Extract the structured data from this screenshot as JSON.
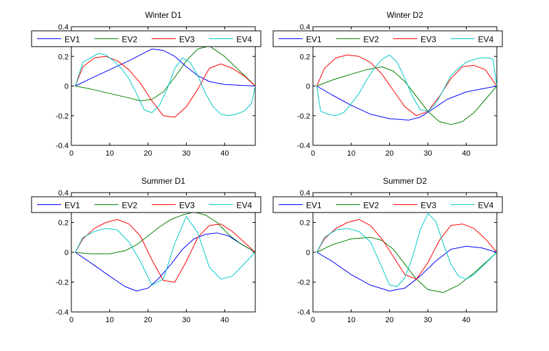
{
  "chart_data": [
    {
      "type": "line",
      "title": "Winter D1",
      "xlabel": "",
      "ylabel": "",
      "xlim": [
        0,
        48
      ],
      "ylim": [
        -0.4,
        0.4
      ],
      "xticks": [
        0,
        10,
        20,
        30,
        40
      ],
      "yticks": [
        -0.4,
        -0.2,
        0,
        0.2,
        0.4
      ],
      "yticklabels": [
        "-0.4",
        "-0.2",
        "0",
        "0.2",
        "0.4"
      ],
      "grid": false,
      "legend": "top, horizontal",
      "series": [
        {
          "name": "EV1",
          "color": "#0000ff",
          "x": [
            1,
            5,
            10,
            15,
            18,
            21,
            24,
            27,
            30,
            33,
            36,
            40,
            44,
            48
          ],
          "y": [
            0,
            0.05,
            0.11,
            0.17,
            0.21,
            0.25,
            0.24,
            0.2,
            0.13,
            0.07,
            0.03,
            0.01,
            0.005,
            0
          ]
        },
        {
          "name": "EV2",
          "color": "#008000",
          "x": [
            1,
            5,
            10,
            15,
            18,
            21,
            24,
            27,
            30,
            33,
            36,
            40,
            44,
            48
          ],
          "y": [
            0,
            -0.02,
            -0.05,
            -0.08,
            -0.1,
            -0.09,
            -0.04,
            0.06,
            0.17,
            0.25,
            0.27,
            0.2,
            0.1,
            0
          ]
        },
        {
          "name": "EV3",
          "color": "#ff0000",
          "x": [
            1,
            3,
            6,
            9,
            12,
            15,
            18,
            21,
            24,
            27,
            30,
            33,
            36,
            39,
            42,
            45,
            48
          ],
          "y": [
            0,
            0.13,
            0.19,
            0.2,
            0.17,
            0.11,
            0.02,
            -0.1,
            -0.2,
            -0.21,
            -0.14,
            -0.02,
            0.12,
            0.15,
            0.12,
            0.07,
            0
          ]
        },
        {
          "name": "EV4",
          "color": "#00c8c8",
          "x": [
            1,
            3,
            5,
            7,
            9,
            11,
            13,
            15,
            17,
            19,
            21,
            23,
            25,
            27,
            29,
            31,
            33,
            35,
            37,
            39,
            41,
            43,
            45,
            47,
            48
          ],
          "y": [
            0,
            0.16,
            0.19,
            0.22,
            0.21,
            0.17,
            0.12,
            0.05,
            -0.05,
            -0.16,
            -0.18,
            -0.13,
            -0.02,
            0.12,
            0.19,
            0.16,
            0.07,
            -0.05,
            -0.14,
            -0.19,
            -0.2,
            -0.19,
            -0.17,
            -0.12,
            0
          ]
        }
      ]
    },
    {
      "type": "line",
      "title": "Winter D2",
      "xlabel": "",
      "ylabel": "",
      "xlim": [
        0,
        48
      ],
      "ylim": [
        -0.4,
        0.4
      ],
      "xticks": [
        0,
        10,
        20,
        30,
        40
      ],
      "yticks": [
        -0.4,
        -0.2,
        0,
        0.2,
        0.4
      ],
      "yticklabels": [
        "-0.4",
        "-0.2",
        "0",
        "0.2",
        "0.4"
      ],
      "grid": false,
      "legend": "top, horizontal",
      "series": [
        {
          "name": "EV1",
          "color": "#0000ff",
          "x": [
            1,
            5,
            10,
            15,
            20,
            25,
            28,
            31,
            35,
            40,
            44,
            48
          ],
          "y": [
            0,
            -0.06,
            -0.13,
            -0.19,
            -0.22,
            -0.23,
            -0.21,
            -0.16,
            -0.09,
            -0.04,
            -0.02,
            0
          ]
        },
        {
          "name": "EV2",
          "color": "#008000",
          "x": [
            1,
            5,
            10,
            14,
            18,
            21,
            24,
            27,
            30,
            33,
            36,
            39,
            42,
            45,
            48
          ],
          "y": [
            0,
            0.04,
            0.08,
            0.11,
            0.13,
            0.1,
            0.03,
            -0.07,
            -0.17,
            -0.24,
            -0.26,
            -0.24,
            -0.18,
            -0.09,
            0
          ]
        },
        {
          "name": "EV3",
          "color": "#ff0000",
          "x": [
            1,
            3,
            6,
            9,
            12,
            15,
            18,
            21,
            24,
            27,
            30,
            33,
            36,
            39,
            42,
            45,
            48
          ],
          "y": [
            0,
            0.12,
            0.19,
            0.21,
            0.2,
            0.16,
            0.08,
            -0.03,
            -0.14,
            -0.2,
            -0.17,
            -0.07,
            0.05,
            0.13,
            0.14,
            0.11,
            0
          ]
        },
        {
          "name": "EV4",
          "color": "#00c8c8",
          "x": [
            1,
            2,
            4,
            6,
            8,
            10,
            12,
            14,
            16,
            18,
            20,
            22,
            24,
            26,
            28,
            30,
            32,
            34,
            36,
            38,
            40,
            42,
            44,
            46,
            47,
            48
          ],
          "y": [
            0,
            -0.17,
            -0.19,
            -0.2,
            -0.18,
            -0.12,
            -0.05,
            0.04,
            0.12,
            0.18,
            0.21,
            0.16,
            0.05,
            -0.07,
            -0.16,
            -0.17,
            -0.12,
            -0.03,
            0.07,
            0.12,
            0.16,
            0.18,
            0.19,
            0.19,
            0.18,
            0
          ]
        }
      ]
    },
    {
      "type": "line",
      "title": "Summer D1",
      "xlabel": "",
      "ylabel": "",
      "xlim": [
        0,
        48
      ],
      "ylim": [
        -0.4,
        0.4
      ],
      "xticks": [
        0,
        10,
        20,
        30,
        40
      ],
      "yticks": [
        -0.4,
        -0.2,
        0,
        0.2,
        0.4
      ],
      "yticklabels": [
        "-0.4",
        "-0.2",
        "0",
        "0.2",
        "0.4"
      ],
      "grid": false,
      "legend": "top, horizontal",
      "series": [
        {
          "name": "EV1",
          "color": "#0000ff",
          "x": [
            1,
            5,
            10,
            14,
            17,
            20,
            23,
            26,
            29,
            32,
            35,
            38,
            41,
            44,
            48
          ],
          "y": [
            0,
            -0.07,
            -0.16,
            -0.23,
            -0.26,
            -0.24,
            -0.17,
            -0.08,
            0.02,
            0.09,
            0.12,
            0.13,
            0.11,
            0.06,
            0
          ]
        },
        {
          "name": "EV2",
          "color": "#008000",
          "x": [
            1,
            5,
            10,
            14,
            17,
            20,
            23,
            26,
            29,
            32,
            35,
            38,
            41,
            44,
            48
          ],
          "y": [
            0,
            -0.01,
            -0.01,
            0.01,
            0.05,
            0.11,
            0.17,
            0.22,
            0.25,
            0.27,
            0.25,
            0.2,
            0.12,
            0.06,
            0
          ]
        },
        {
          "name": "EV3",
          "color": "#ff0000",
          "x": [
            1,
            3,
            6,
            9,
            12,
            15,
            18,
            21,
            24,
            27,
            30,
            33,
            36,
            39,
            42,
            45,
            48
          ],
          "y": [
            0,
            0.09,
            0.16,
            0.2,
            0.22,
            0.19,
            0.11,
            -0.05,
            -0.19,
            -0.2,
            -0.06,
            0.1,
            0.18,
            0.19,
            0.14,
            0.07,
            0
          ]
        },
        {
          "name": "EV4",
          "color": "#00c8c8",
          "x": [
            1,
            3,
            6,
            9,
            12,
            15,
            18,
            21,
            24,
            27,
            30,
            33,
            36,
            39,
            42,
            45,
            48
          ],
          "y": [
            0,
            0.1,
            0.14,
            0.16,
            0.15,
            0.07,
            -0.06,
            -0.22,
            -0.18,
            0.06,
            0.24,
            0.13,
            -0.1,
            -0.18,
            -0.16,
            -0.08,
            0
          ]
        }
      ]
    },
    {
      "type": "line",
      "title": "Summer D2",
      "xlabel": "",
      "ylabel": "",
      "xlim": [
        0,
        48
      ],
      "ylim": [
        -0.4,
        0.4
      ],
      "xticks": [
        0,
        10,
        20,
        30,
        40
      ],
      "yticks": [
        -0.4,
        -0.2,
        0,
        0.2,
        0.4
      ],
      "yticklabels": [
        "-0.4",
        "-0.2",
        "0",
        "0.2",
        "0.4"
      ],
      "grid": false,
      "legend": "top, horizontal",
      "series": [
        {
          "name": "EV1",
          "color": "#0000ff",
          "x": [
            1,
            5,
            10,
            15,
            20,
            24,
            28,
            32,
            36,
            40,
            44,
            48
          ],
          "y": [
            0,
            -0.06,
            -0.15,
            -0.22,
            -0.26,
            -0.24,
            -0.16,
            -0.06,
            0.02,
            0.04,
            0.03,
            0
          ]
        },
        {
          "name": "EV2",
          "color": "#008000",
          "x": [
            1,
            5,
            10,
            15,
            18,
            21,
            24,
            27,
            30,
            34,
            38,
            42,
            45,
            48
          ],
          "y": [
            0,
            0.05,
            0.09,
            0.1,
            0.08,
            0.02,
            -0.08,
            -0.18,
            -0.25,
            -0.27,
            -0.22,
            -0.14,
            -0.07,
            0
          ]
        },
        {
          "name": "EV3",
          "color": "#ff0000",
          "x": [
            1,
            3,
            6,
            9,
            12,
            15,
            18,
            21,
            24,
            27,
            30,
            33,
            36,
            39,
            42,
            45,
            48
          ],
          "y": [
            0,
            0.09,
            0.16,
            0.2,
            0.22,
            0.18,
            0.09,
            -0.03,
            -0.15,
            -0.18,
            -0.07,
            0.08,
            0.18,
            0.19,
            0.16,
            0.09,
            0
          ]
        },
        {
          "name": "EV4",
          "color": "#00c8c8",
          "x": [
            1,
            3,
            6,
            9,
            12,
            15,
            18,
            20,
            22,
            24,
            26,
            28,
            30,
            32,
            34,
            36,
            38,
            40,
            42,
            44,
            46,
            48
          ],
          "y": [
            0,
            0.1,
            0.15,
            0.16,
            0.14,
            0.07,
            -0.1,
            -0.22,
            -0.23,
            -0.17,
            -0.03,
            0.15,
            0.26,
            0.21,
            0.06,
            -0.08,
            -0.16,
            -0.18,
            -0.15,
            -0.1,
            -0.05,
            0
          ]
        }
      ]
    }
  ]
}
